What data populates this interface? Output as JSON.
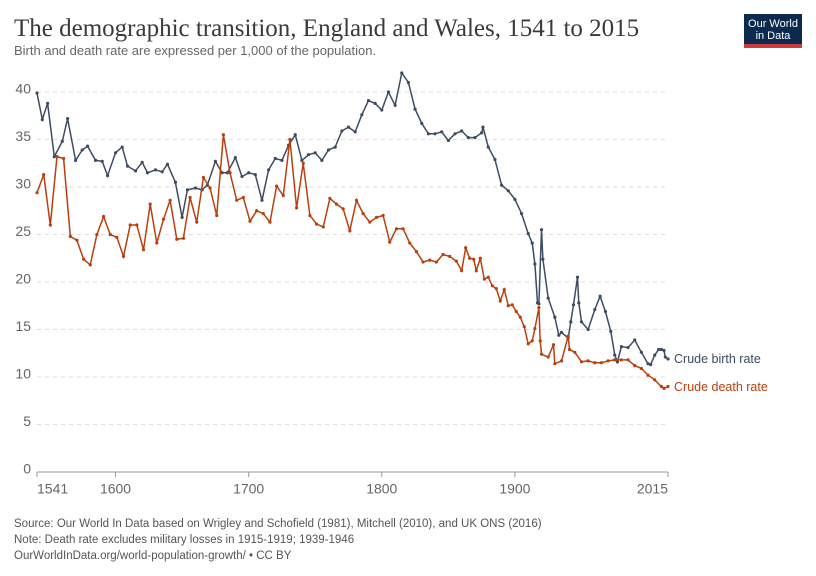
{
  "chart_data": {
    "type": "line",
    "title": "The demographic transition, England and Wales, 1541 to 2015",
    "subtitle": "Birth and death rate are expressed per 1,000 of the population.",
    "source": "Source: Our World In Data based on Wrigley and Schofield (1981), Mitchell (2010), and UK ONS (2016)",
    "note": "Note: Death rate excludes military losses in 1915-1919; 1939-1946",
    "url": "OurWorldInData.org/world-population-growth/ • CC BY",
    "logo": [
      "Our World",
      "in Data"
    ],
    "xlim": [
      1541,
      2015
    ],
    "xticks": [
      1541,
      1600,
      1700,
      1800,
      1900,
      2015
    ],
    "ylim": [
      0,
      42
    ],
    "yticks": [
      0,
      5,
      10,
      15,
      20,
      25,
      30,
      35,
      40
    ],
    "grid": true,
    "series": [
      {
        "name": "Crude birth rate",
        "color": "#3e4c61",
        "x": [
          1541,
          1545,
          1549,
          1554,
          1560,
          1564,
          1570,
          1575,
          1579,
          1585,
          1590,
          1594,
          1600,
          1605,
          1609,
          1615,
          1620,
          1624,
          1630,
          1635,
          1639,
          1645,
          1650,
          1654,
          1660,
          1665,
          1669,
          1675,
          1680,
          1684,
          1690,
          1695,
          1700,
          1705,
          1710,
          1715,
          1720,
          1725,
          1730,
          1735,
          1740,
          1745,
          1750,
          1755,
          1760,
          1765,
          1770,
          1775,
          1780,
          1785,
          1790,
          1795,
          1800,
          1805,
          1810,
          1815,
          1820,
          1825,
          1830,
          1835,
          1840,
          1845,
          1850,
          1855,
          1860,
          1865,
          1870,
          1875,
          1876,
          1880,
          1885,
          1890,
          1895,
          1900,
          1905,
          1910,
          1913,
          1915,
          1917,
          1918,
          1920,
          1921,
          1925,
          1930,
          1933,
          1935,
          1940,
          1942,
          1944,
          1947,
          1948,
          1950,
          1955,
          1960,
          1964,
          1968,
          1972,
          1975,
          1977,
          1980,
          1985,
          1990,
          1995,
          2000,
          2002,
          2005,
          2008,
          2010,
          2012,
          2013,
          2015
        ],
        "values": [
          39.9,
          37.1,
          38.8,
          33.2,
          34.8,
          37.2,
          32.8,
          33.9,
          34.3,
          32.8,
          32.7,
          31.2,
          33.6,
          34.2,
          32.2,
          31.7,
          32.6,
          31.5,
          31.8,
          31.6,
          32.4,
          30.5,
          26.8,
          29.7,
          29.9,
          29.7,
          30.2,
          32.7,
          31.5,
          31.5,
          33.1,
          31.1,
          31.5,
          31.3,
          28.6,
          31.8,
          33.0,
          32.8,
          34.4,
          35.5,
          32.8,
          33.4,
          33.6,
          32.8,
          33.9,
          34.2,
          35.9,
          36.3,
          35.8,
          37.6,
          39.1,
          38.8,
          38.1,
          40.0,
          38.6,
          42.0,
          41.0,
          38.2,
          36.7,
          35.6,
          35.6,
          35.8,
          34.9,
          35.6,
          35.9,
          35.2,
          35.2,
          35.7,
          36.3,
          34.2,
          32.9,
          30.2,
          29.6,
          28.7,
          27.2,
          25.1,
          24.1,
          21.9,
          17.8,
          17.7,
          25.5,
          22.4,
          18.3,
          16.3,
          14.4,
          14.7,
          14.1,
          15.8,
          17.6,
          20.5,
          17.8,
          15.8,
          15.0,
          17.1,
          18.5,
          16.9,
          14.8,
          12.3,
          11.6,
          13.2,
          13.1,
          13.9,
          12.6,
          11.4,
          11.3,
          12.3,
          12.9,
          12.9,
          12.8,
          12.1,
          11.9
        ]
      },
      {
        "name": "Crude death rate",
        "color": "#b9400e",
        "x": [
          1541,
          1546,
          1551,
          1556,
          1561,
          1566,
          1571,
          1576,
          1581,
          1586,
          1591,
          1596,
          1601,
          1606,
          1611,
          1616,
          1621,
          1626,
          1631,
          1636,
          1641,
          1646,
          1651,
          1656,
          1661,
          1666,
          1671,
          1676,
          1681,
          1686,
          1691,
          1696,
          1701,
          1706,
          1711,
          1716,
          1721,
          1726,
          1731,
          1736,
          1741,
          1746,
          1751,
          1756,
          1761,
          1766,
          1771,
          1776,
          1781,
          1786,
          1791,
          1796,
          1801,
          1806,
          1811,
          1816,
          1821,
          1826,
          1831,
          1836,
          1841,
          1846,
          1851,
          1856,
          1860,
          1863,
          1866,
          1869,
          1871,
          1874,
          1877,
          1880,
          1883,
          1886,
          1889,
          1892,
          1895,
          1898,
          1901,
          1904,
          1907,
          1910,
          1913,
          1915,
          1918,
          1919,
          1920,
          1925,
          1929,
          1930,
          1935,
          1940,
          1941,
          1945,
          1950,
          1955,
          1960,
          1965,
          1970,
          1975,
          1980,
          1985,
          1990,
          1995,
          2000,
          2005,
          2010,
          2012,
          2015
        ],
        "values": [
          29.4,
          31.3,
          26.0,
          33.2,
          33.0,
          24.8,
          24.4,
          22.4,
          21.8,
          25.0,
          26.9,
          25.0,
          24.7,
          22.7,
          26.0,
          26.0,
          23.4,
          28.2,
          24.1,
          26.6,
          28.6,
          24.5,
          24.6,
          28.9,
          26.3,
          31.0,
          29.9,
          27.0,
          35.5,
          31.5,
          28.6,
          28.9,
          26.4,
          27.5,
          27.2,
          26.3,
          30.1,
          29.1,
          35.0,
          27.8,
          32.5,
          27.0,
          26.1,
          25.8,
          28.8,
          28.2,
          27.7,
          25.4,
          28.6,
          27.2,
          26.3,
          26.8,
          27.0,
          24.2,
          25.6,
          25.6,
          24.1,
          23.2,
          22.1,
          22.3,
          22.1,
          22.9,
          22.7,
          22.2,
          21.2,
          23.6,
          22.5,
          22.4,
          21.2,
          22.5,
          20.3,
          20.5,
          19.6,
          19.3,
          18.0,
          19.2,
          17.5,
          17.6,
          16.9,
          16.3,
          15.3,
          13.5,
          13.8,
          15.1,
          17.3,
          13.8,
          12.4,
          12.1,
          13.4,
          11.4,
          11.7,
          14.3,
          12.9,
          12.6,
          11.6,
          11.7,
          11.5,
          11.5,
          11.7,
          11.8,
          11.8,
          11.8,
          11.2,
          10.9,
          10.2,
          9.7,
          9.0,
          8.8,
          9.0
        ]
      }
    ]
  }
}
